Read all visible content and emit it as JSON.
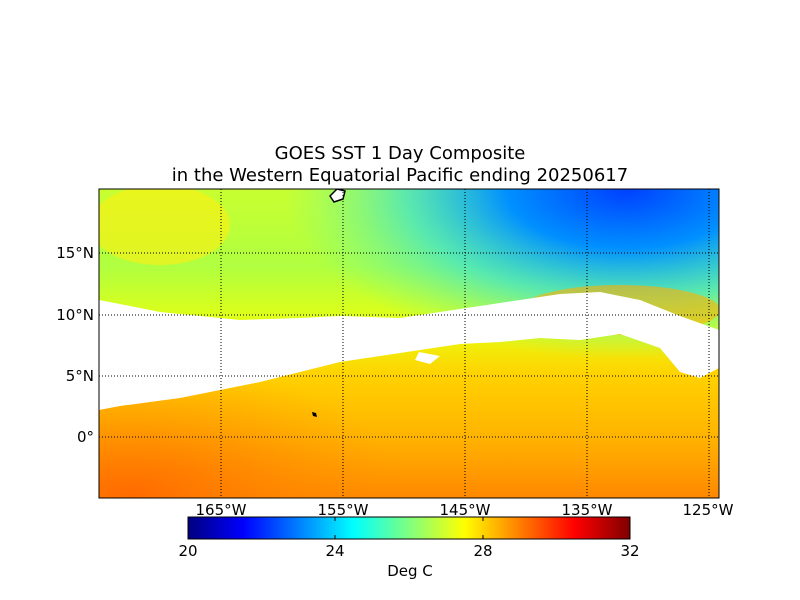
{
  "title": {
    "line1": "GOES SST 1 Day Composite",
    "line2": "in the Western Equatorial Pacific ending 20250617"
  },
  "map": {
    "lat_labels": [
      "15°N",
      "10°N",
      "5°N",
      "0°"
    ],
    "lon_labels": [
      "165°W",
      "155°W",
      "145°W",
      "135°W",
      "125°W"
    ],
    "grid": true,
    "missing_color": "#ffffff",
    "land_color": "#000000"
  },
  "colorbar": {
    "tick_labels": [
      "20",
      "24",
      "28",
      "32"
    ],
    "units": "Deg C",
    "colormap": [
      "#00007f",
      "#0000ff",
      "#007fff",
      "#00ffff",
      "#7fff7f",
      "#ffff00",
      "#ff7f00",
      "#ff0000",
      "#7f0000"
    ]
  }
}
